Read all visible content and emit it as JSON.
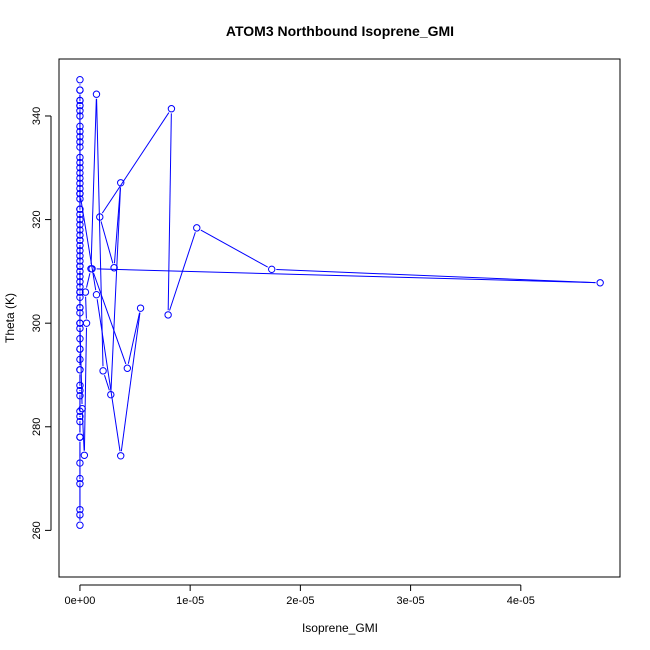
{
  "chart_data": {
    "type": "line",
    "title": "ATOM3 Northbound Isoprene_GMI",
    "xlabel": "Isoprene_GMI",
    "ylabel": "Theta (K)",
    "xlim": [
      -1.9e-06,
      4.9e-05
    ],
    "ylim": [
      251,
      351
    ],
    "xticks": [
      0,
      1e-05,
      2e-05,
      3e-05,
      4e-05
    ],
    "xtick_labels": [
      "0e+00",
      "1e-05",
      "2e-05",
      "3e-05",
      "4e-05"
    ],
    "yticks": [
      260,
      280,
      300,
      320,
      340
    ],
    "ytick_labels": [
      "260",
      "280",
      "300",
      "320",
      "340"
    ],
    "grid": false,
    "series": [
      {
        "color": "#0000ff",
        "marker": "open-circle",
        "x": [
          0,
          0,
          0,
          0,
          0,
          0,
          0,
          0,
          0,
          0,
          0,
          0,
          0,
          0,
          0,
          0,
          0,
          0,
          0,
          0,
          0,
          0,
          0,
          0,
          0,
          0,
          0,
          0,
          0,
          0,
          0,
          0,
          0,
          0,
          0,
          0,
          0,
          0,
          0,
          0,
          0,
          0,
          0,
          0,
          0,
          0,
          0,
          0,
          0,
          0,
          0,
          0,
          0,
          0,
          0,
          0,
          0,
          0,
          0,
          0,
          0,
          0,
          0,
          0,
          0,
          0,
          0,
          0,
          0,
          0,
          0,
          2e-07,
          4e-07,
          6e-07,
          5e-07,
          1e-06,
          1.5e-06,
          2.1e-06,
          2.8e-06,
          3.7e-06,
          3.1e-06,
          1.8e-06,
          8.3e-06,
          8e-06,
          1.06e-05,
          1.74e-05,
          4.72e-05,
          1.1e-06,
          4.3e-06,
          5.5e-06,
          3.7e-06,
          1.5e-06,
          0
        ],
        "y": [
          347,
          345,
          343,
          342,
          340,
          337,
          334,
          331,
          329,
          326,
          324,
          321,
          319,
          317,
          315,
          313,
          311,
          309,
          307,
          305,
          303,
          300,
          297,
          295,
          293,
          291,
          288,
          286,
          283,
          281,
          278,
          270,
          263,
          261,
          264,
          269,
          273,
          278,
          282,
          287,
          291,
          295,
          299,
          302,
          306,
          308,
          310,
          312,
          314,
          316,
          318,
          320,
          322,
          325,
          327,
          330,
          332,
          335,
          338,
          341,
          343,
          345,
          342,
          336,
          328,
          322,
          316,
          311,
          306,
          303,
          300,
          283.5,
          274.5,
          300,
          306,
          310.5,
          344.2,
          290.8,
          286.2,
          327.1,
          310.7,
          320.5,
          341.4,
          301.6,
          318.4,
          310.4,
          307.8,
          310.5,
          291.3,
          302.9,
          274.4,
          305.5,
          325
        ]
      }
    ]
  }
}
